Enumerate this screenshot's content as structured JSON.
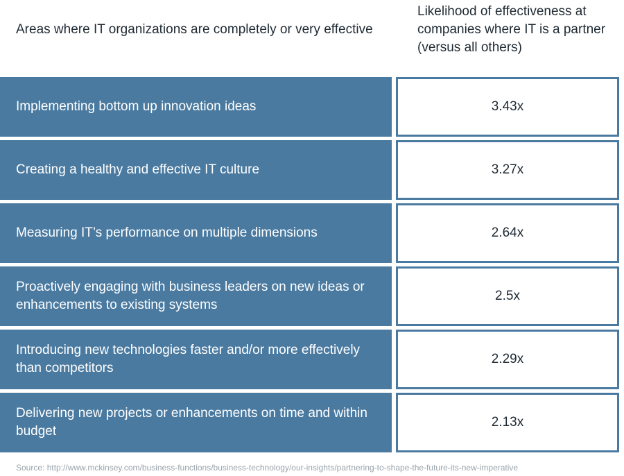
{
  "header": {
    "left": "Areas where IT organizations are completely or very effective",
    "right": "Likelihood of effectiveness at companies where IT is a partner (versus all others)"
  },
  "colors": {
    "label_fill": "#4a7aa0",
    "value_border": "#4a7aa0"
  },
  "chart_data": {
    "type": "table",
    "columns": [
      "Areas where IT organizations are completely or very effective",
      "Likelihood of effectiveness at companies where IT is a partner (versus all others)"
    ],
    "rows": [
      {
        "area": "Implementing bottom up innovation ideas",
        "value": "3.43x"
      },
      {
        "area": "Creating a healthy and effective IT culture",
        "value": "3.27x"
      },
      {
        "area": "Measuring IT’s performance on multiple dimensions",
        "value": "2.64x"
      },
      {
        "area": "Proactively engaging with business leaders on new ideas or enhancements to existing systems",
        "value": "2.5x"
      },
      {
        "area": "Introducing new technologies faster and/or more effectively than competitors",
        "value": "2.29x"
      },
      {
        "area": "Delivering new projects or enhancements on time and within budget",
        "value": "2.13x"
      }
    ]
  },
  "source": "Source: http://www.mckinsey.com/business-functions/business-technology/our-insights/partnering-to-shape-the-future-its-new-imperative"
}
